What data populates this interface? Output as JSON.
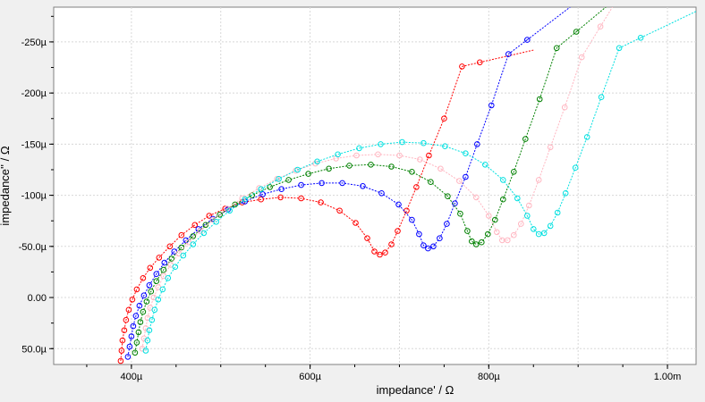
{
  "chart_data": {
    "type": "scatter",
    "xlabel": "impedance' / Ω",
    "ylabel": "impedance'' / Ω",
    "xlim": [
      0.000313,
      0.001032
    ],
    "ylim": [
      6.55e-05,
      -0.000284
    ],
    "x_ticks": [
      0.0004,
      0.0006,
      0.0008,
      0.001
    ],
    "x_tick_labels": [
      "400µ",
      "600µ",
      "800µ",
      "1.00m"
    ],
    "y_ticks": [
      -0.00025,
      -0.0002,
      -0.00015,
      -0.0001,
      -5e-05,
      0,
      5e-05
    ],
    "y_tick_labels": [
      "-250µ",
      "-200µ",
      "-150µ",
      "-100µ",
      "-50.0µ",
      "0.00",
      "50.0µ"
    ],
    "grid": true,
    "colors": {
      "background": "#ffffff",
      "frame": "#f0f0f0",
      "grid": "#d8d8d8",
      "red": "#ff0000",
      "blue": "#0000ff",
      "green": "#008000",
      "pink": "#ffb6c1",
      "cyan": "#00e0e0"
    },
    "series": [
      {
        "color": "red",
        "params": {
          "x0": 0.000388,
          "R1": 0.000198,
          "Dy": 0.0,
          "x_tail": 0.000672,
          "y_tail": -3.6e-05,
          "k": 4.4
        },
        "markers": [
          [
            0.000388,
            6.2e-05
          ],
          [
            0.000389,
            5.2e-05
          ],
          [
            0.00039,
            4.2e-05
          ],
          [
            0.000392,
            3.2e-05
          ],
          [
            0.000394,
            2.2e-05
          ],
          [
            0.000397,
            1.2e-05
          ],
          [
            0.000401,
            2e-06
          ],
          [
            0.000406,
            -8e-06
          ],
          [
            0.000413,
            -1.9e-05
          ],
          [
            0.000421,
            -2.9e-05
          ],
          [
            0.000431,
            -3.9e-05
          ],
          [
            0.000443,
            -5e-05
          ],
          [
            0.000456,
            -6.1e-05
          ],
          [
            0.000471,
            -7.1e-05
          ],
          [
            0.000487,
            -8e-05
          ],
          [
            0.000505,
            -8.7e-05
          ],
          [
            0.000524,
            -9.3e-05
          ],
          [
            0.000545,
            -9.6e-05
          ],
          [
            0.000567,
            -9.8e-05
          ],
          [
            0.00059,
            -9.7e-05
          ],
          [
            0.000612,
            -9.3e-05
          ],
          [
            0.000633,
            -8.5e-05
          ],
          [
            0.000651,
            -7.3e-05
          ],
          [
            0.000664,
            -5.8e-05
          ],
          [
            0.000672,
            -4.5e-05
          ],
          [
            0.000678,
            -4.2e-05
          ],
          [
            0.000684,
            -4.4e-05
          ],
          [
            0.000691,
            -5.2e-05
          ],
          [
            0.000698,
            -6.5e-05
          ],
          [
            0.000708,
            -8.5e-05
          ],
          [
            0.000719,
            -0.000108
          ],
          [
            0.000733,
            -0.000139
          ],
          [
            0.00075,
            -0.000175
          ],
          [
            0.00077,
            -0.000226
          ],
          [
            0.00079,
            -0.00023
          ]
        ]
      },
      {
        "color": "blue",
        "params": {},
        "markers": [
          [
            0.000396,
            5.8e-05
          ],
          [
            0.000398,
            4.8e-05
          ],
          [
            0.0004,
            3.8e-05
          ],
          [
            0.000402,
            2.8e-05
          ],
          [
            0.000405,
            1.8e-05
          ],
          [
            0.000409,
            8e-06
          ],
          [
            0.000414,
            -2e-06
          ],
          [
            0.00042,
            -1.2e-05
          ],
          [
            0.000428,
            -2.3e-05
          ],
          [
            0.000437,
            -3.4e-05
          ],
          [
            0.000448,
            -4.5e-05
          ],
          [
            0.000461,
            -5.6e-05
          ],
          [
            0.000475,
            -6.7e-05
          ],
          [
            0.000491,
            -7.7e-05
          ],
          [
            0.000508,
            -8.6e-05
          ],
          [
            0.000527,
            -9.4e-05
          ],
          [
            0.000547,
            -0.000101
          ],
          [
            0.000568,
            -0.000106
          ],
          [
            0.00059,
            -0.00011
          ],
          [
            0.000613,
            -0.000112
          ],
          [
            0.000636,
            -0.000112
          ],
          [
            0.000659,
            -0.000109
          ],
          [
            0.00068,
            -0.000102
          ],
          [
            0.000699,
            -9.1e-05
          ],
          [
            0.000714,
            -7.6e-05
          ],
          [
            0.000722,
            -6.2e-05
          ],
          [
            0.000727,
            -5.1e-05
          ],
          [
            0.000732,
            -4.8e-05
          ],
          [
            0.000738,
            -5e-05
          ],
          [
            0.000745,
            -5.8e-05
          ],
          [
            0.000753,
            -7.2e-05
          ],
          [
            0.000762,
            -9.2e-05
          ],
          [
            0.000774,
            -0.000118
          ],
          [
            0.000787,
            -0.00015
          ],
          [
            0.000803,
            -0.000188
          ],
          [
            0.000822,
            -0.000238
          ],
          [
            0.000843,
            -0.000252
          ]
        ]
      },
      {
        "color": "green",
        "params": {},
        "markers": [
          [
            0.000404,
            5.4e-05
          ],
          [
            0.000406,
            4.4e-05
          ],
          [
            0.000408,
            3.4e-05
          ],
          [
            0.00041,
            2.4e-05
          ],
          [
            0.000413,
            1.4e-05
          ],
          [
            0.000417,
            4e-06
          ],
          [
            0.000422,
            -6e-06
          ],
          [
            0.000428,
            -1.6e-05
          ],
          [
            0.000436,
            -2.7e-05
          ],
          [
            0.000445,
            -3.8e-05
          ],
          [
            0.000456,
            -4.9e-05
          ],
          [
            0.000469,
            -6e-05
          ],
          [
            0.000483,
            -7.1e-05
          ],
          [
            0.000499,
            -8.1e-05
          ],
          [
            0.000516,
            -9.1e-05
          ],
          [
            0.000535,
            -0.0001
          ],
          [
            0.000555,
            -0.000108
          ],
          [
            0.000576,
            -0.000115
          ],
          [
            0.000598,
            -0.000121
          ],
          [
            0.000621,
            -0.000126
          ],
          [
            0.000644,
            -0.000129
          ],
          [
            0.000668,
            -0.00013
          ],
          [
            0.000691,
            -0.000128
          ],
          [
            0.000714,
            -0.000123
          ],
          [
            0.000735,
            -0.000113
          ],
          [
            0.000754,
            -9.9e-05
          ],
          [
            0.000768,
            -8.2e-05
          ],
          [
            0.000776,
            -6.5e-05
          ],
          [
            0.000781,
            -5.5e-05
          ],
          [
            0.000786,
            -5.2e-05
          ],
          [
            0.000792,
            -5.4e-05
          ],
          [
            0.000799,
            -6.2e-05
          ],
          [
            0.000807,
            -7.6e-05
          ],
          [
            0.000816,
            -9.6e-05
          ],
          [
            0.000828,
            -0.000123
          ],
          [
            0.000841,
            -0.000155
          ],
          [
            0.000857,
            -0.000194
          ],
          [
            0.000876,
            -0.000244
          ],
          [
            0.000898,
            -0.00026
          ]
        ]
      },
      {
        "color": "pink",
        "params": {},
        "markers": [
          [
            0.000412,
            5e-05
          ],
          [
            0.000414,
            4e-05
          ],
          [
            0.000416,
            3e-05
          ],
          [
            0.000418,
            2e-05
          ],
          [
            0.000421,
            1e-05
          ],
          [
            0.000425,
            0.0
          ],
          [
            0.00043,
            -1e-05
          ],
          [
            0.000436,
            -2.1e-05
          ],
          [
            0.000444,
            -3.2e-05
          ],
          [
            0.000453,
            -4.3e-05
          ],
          [
            0.000464,
            -5.4e-05
          ],
          [
            0.000477,
            -6.5e-05
          ],
          [
            0.000491,
            -7.6e-05
          ],
          [
            0.000507,
            -8.7e-05
          ],
          [
            0.000524,
            -9.7e-05
          ],
          [
            0.000543,
            -0.000107
          ],
          [
            0.000563,
            -0.000116
          ],
          [
            0.000584,
            -0.000124
          ],
          [
            0.000606,
            -0.000131
          ],
          [
            0.000629,
            -0.000136
          ],
          [
            0.000652,
            -0.000139
          ],
          [
            0.000676,
            -0.00014
          ],
          [
            0.0007,
            -0.000139
          ],
          [
            0.000723,
            -0.000135
          ],
          [
            0.000746,
            -0.000126
          ],
          [
            0.000767,
            -0.000114
          ],
          [
            0.000786,
            -9.8e-05
          ],
          [
            0.0008,
            -8e-05
          ],
          [
            0.000809,
            -6.4e-05
          ],
          [
            0.000815,
            -5.6e-05
          ],
          [
            0.000821,
            -5.6e-05
          ],
          [
            0.000828,
            -6.1e-05
          ],
          [
            0.000836,
            -7.2e-05
          ],
          [
            0.000845,
            -9e-05
          ],
          [
            0.000856,
            -0.000115
          ],
          [
            0.000869,
            -0.000147
          ],
          [
            0.000885,
            -0.000186
          ],
          [
            0.000904,
            -0.000235
          ],
          [
            0.000925,
            -0.000265
          ]
        ]
      },
      {
        "color": "cyan",
        "params": {},
        "markers": [
          [
            0.000416,
            5.2e-05
          ],
          [
            0.000418,
            4.2e-05
          ],
          [
            0.00042,
            3.2e-05
          ],
          [
            0.000423,
            2.2e-05
          ],
          [
            0.000426,
            1.2e-05
          ],
          [
            0.00043,
            2e-06
          ],
          [
            0.000435,
            -8e-06
          ],
          [
            0.000441,
            -1.9e-05
          ],
          [
            0.000449,
            -3e-05
          ],
          [
            0.000458,
            -4.1e-05
          ],
          [
            0.000469,
            -5.2e-05
          ],
          [
            0.000481,
            -6.3e-05
          ],
          [
            0.000495,
            -7.4e-05
          ],
          [
            0.00051,
            -8.5e-05
          ],
          [
            0.000527,
            -9.6e-05
          ],
          [
            0.000545,
            -0.000106
          ],
          [
            0.000565,
            -0.000116
          ],
          [
            0.000586,
            -0.000125
          ],
          [
            0.000608,
            -0.000133
          ],
          [
            0.000631,
            -0.00014
          ],
          [
            0.000655,
            -0.000146
          ],
          [
            0.000679,
            -0.00015
          ],
          [
            0.000703,
            -0.000152
          ],
          [
            0.000727,
            -0.000151
          ],
          [
            0.000751,
            -0.000148
          ],
          [
            0.000774,
            -0.000141
          ],
          [
            0.000796,
            -0.00013
          ],
          [
            0.000816,
            -0.000115
          ],
          [
            0.000832,
            -9.7e-05
          ],
          [
            0.000843,
            -8e-05
          ],
          [
            0.00085,
            -6.7e-05
          ],
          [
            0.000856,
            -6.2e-05
          ],
          [
            0.000862,
            -6.3e-05
          ],
          [
            0.000869,
            -7e-05
          ],
          [
            0.000877,
            -8.3e-05
          ],
          [
            0.000886,
            -0.000102
          ],
          [
            0.000897,
            -0.000127
          ],
          [
            0.00091,
            -0.000157
          ],
          [
            0.000926,
            -0.000196
          ],
          [
            0.000946,
            -0.000244
          ],
          [
            0.00097,
            -0.000254
          ]
        ]
      }
    ]
  }
}
